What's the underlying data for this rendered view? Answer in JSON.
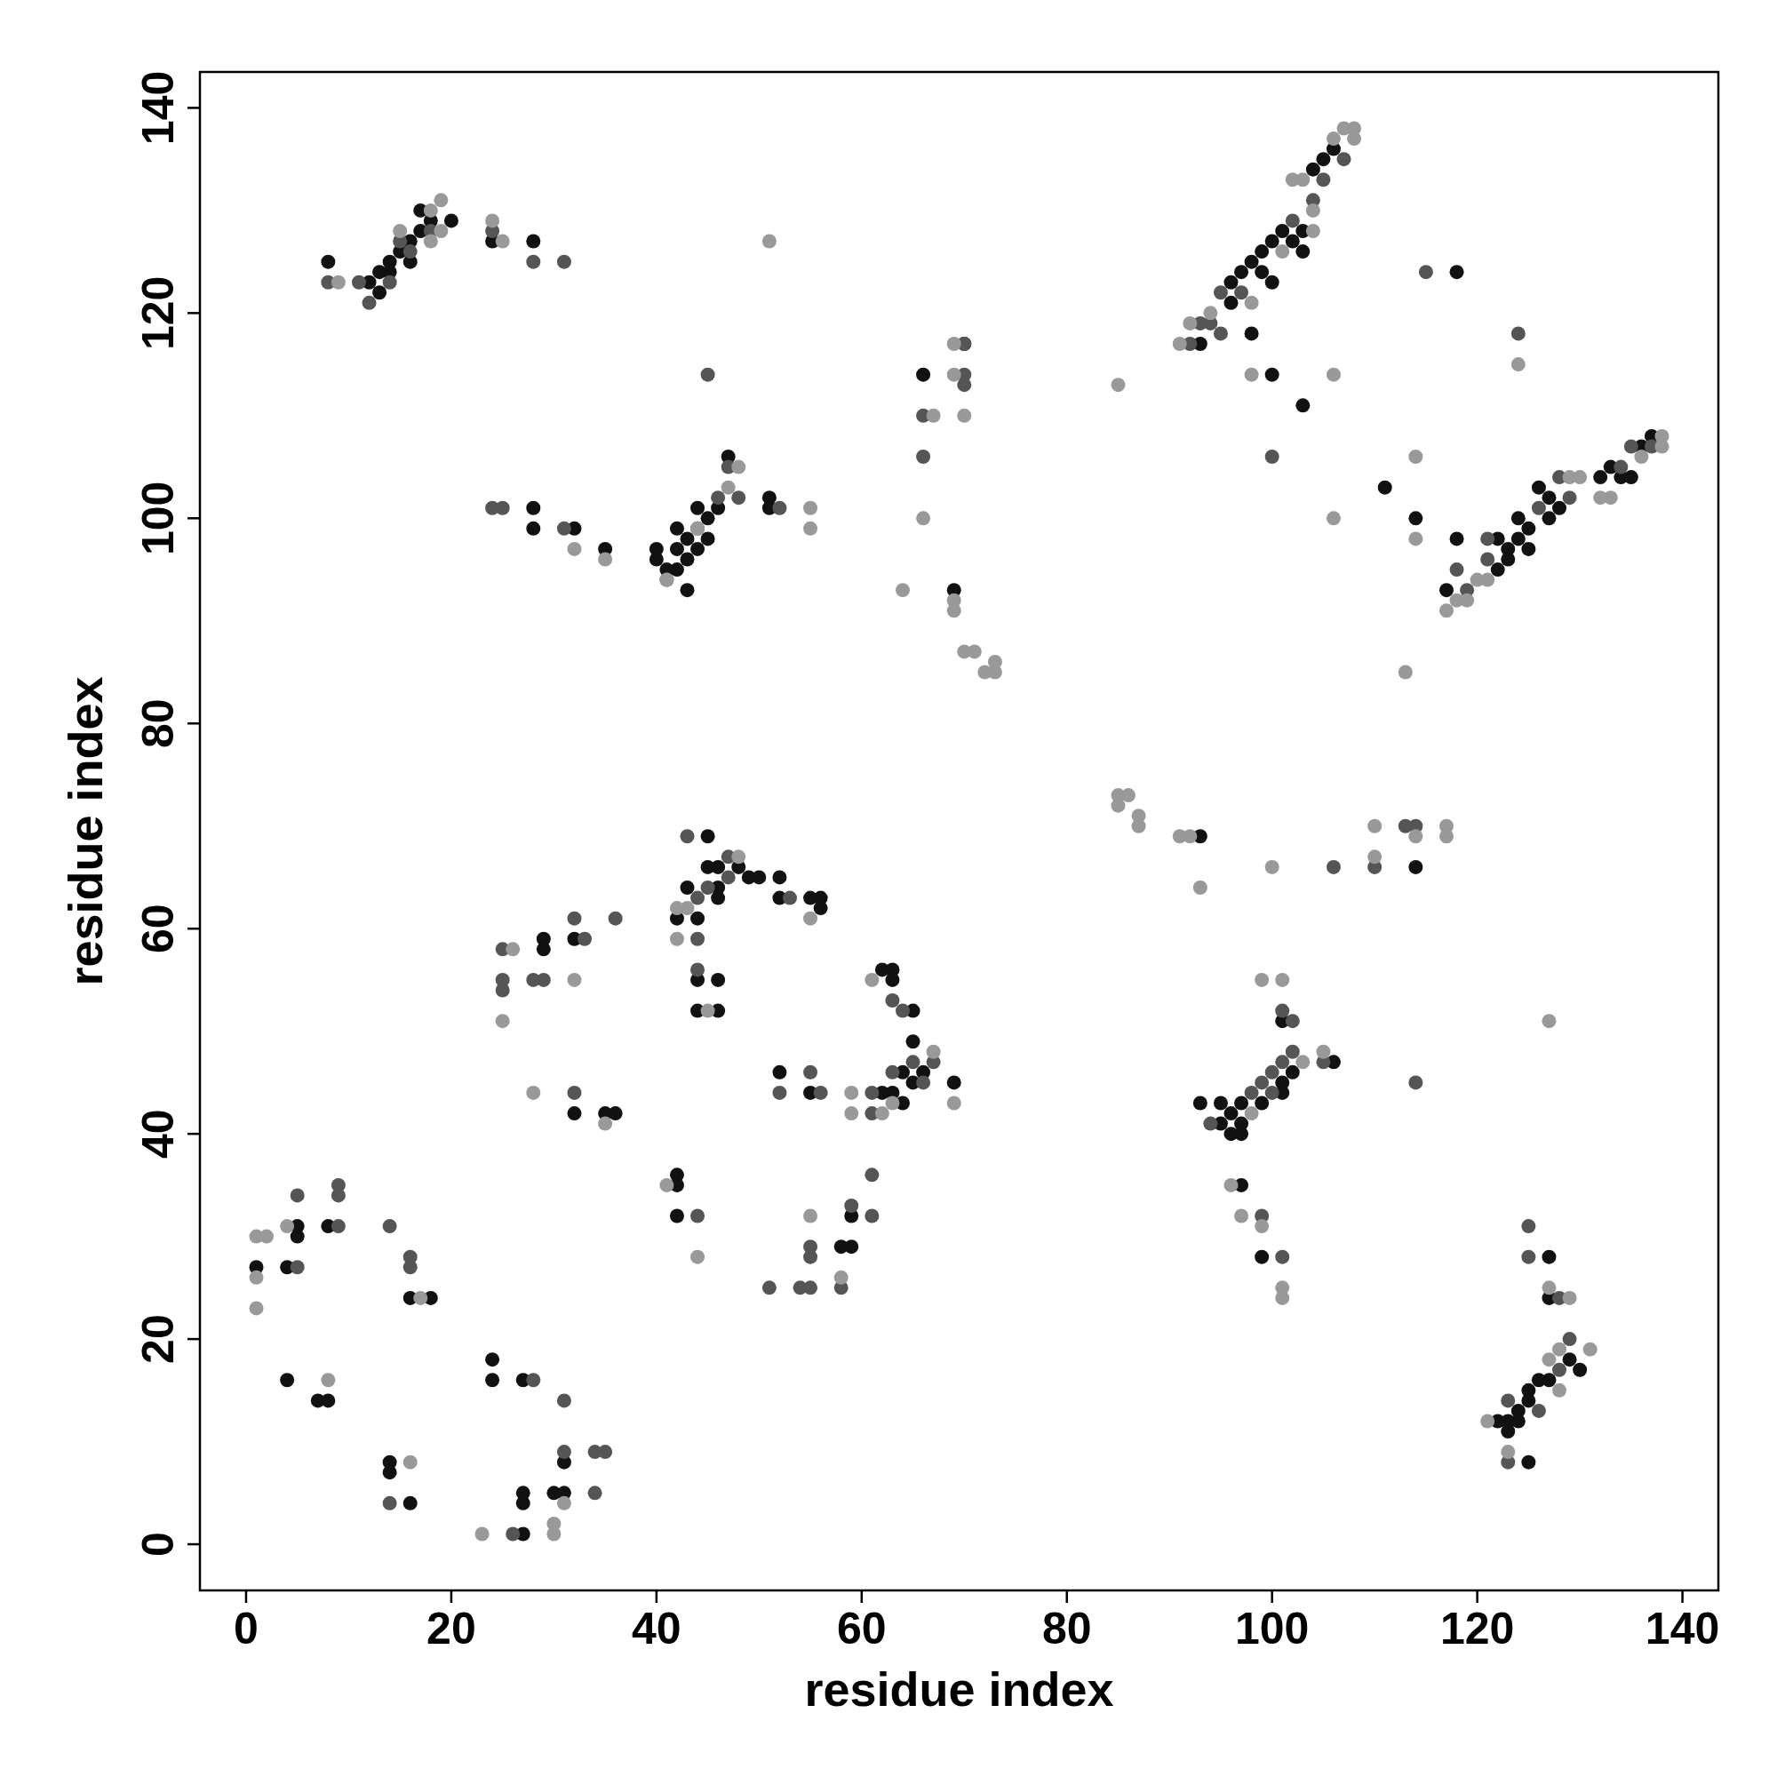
{
  "chart_data": {
    "type": "scatter",
    "xlabel": "residue index",
    "ylabel": "residue index",
    "xlim": [
      -4.5,
      143.5
    ],
    "ylim": [
      -4.5,
      143.5
    ],
    "xticks": [
      0,
      20,
      40,
      60,
      80,
      100,
      120,
      140
    ],
    "yticks": [
      0,
      20,
      40,
      60,
      80,
      100,
      120,
      140
    ],
    "grid": false,
    "marker": "circle",
    "series": [
      {
        "color": "#111111",
        "x": [
          8,
          12,
          13,
          14,
          15,
          16,
          17,
          17,
          18,
          13,
          14,
          16,
          20,
          24,
          28,
          28,
          28,
          32,
          35,
          40,
          40,
          41,
          42,
          42,
          43,
          43,
          43,
          44,
          45,
          45,
          46,
          47,
          51,
          51,
          42,
          44,
          66,
          69,
          70,
          93,
          96,
          96,
          97,
          98,
          98,
          99,
          99,
          100,
          100,
          101,
          102,
          103,
          103,
          104,
          105,
          106,
          100,
          103,
          111,
          114,
          117,
          118,
          118,
          122,
          122,
          123,
          123,
          124,
          124,
          125,
          125,
          126,
          127,
          127,
          128,
          132,
          133,
          134,
          135,
          136,
          137,
          93,
          114,
          93,
          95,
          95,
          96,
          96,
          97,
          97,
          97,
          99,
          101,
          101,
          102,
          106,
          101,
          97,
          99,
          122,
          123,
          123,
          124,
          124,
          125,
          125,
          125,
          126,
          127,
          127,
          127,
          129,
          130,
          29,
          29,
          32,
          32,
          35,
          36,
          42,
          43,
          44,
          44,
          44,
          45,
          45,
          46,
          46,
          46,
          46,
          46,
          48,
          49,
          50,
          52,
          52,
          55,
          56,
          56,
          42,
          42,
          42,
          52,
          55,
          58,
          59,
          59,
          62,
          63,
          63,
          65,
          62,
          63,
          64,
          64,
          65,
          65,
          66,
          69,
          1,
          5,
          5,
          4,
          8,
          4,
          7,
          8,
          16,
          18,
          14,
          14,
          16,
          24,
          24,
          27,
          27,
          27,
          27,
          30,
          31,
          31
        ],
        "values": [
          125,
          123,
          124,
          125,
          126,
          127,
          128,
          130,
          129,
          122,
          124,
          125,
          129,
          127,
          127,
          101,
          99,
          99,
          97,
          97,
          96,
          95,
          97,
          99,
          98,
          96,
          93,
          101,
          100,
          98,
          101,
          106,
          102,
          101,
          95,
          97,
          114,
          93,
          117,
          117,
          121,
          123,
          124,
          125,
          118,
          126,
          124,
          127,
          123,
          128,
          127,
          128,
          126,
          134,
          135,
          136,
          114,
          111,
          103,
          100,
          93,
          98,
          124,
          95,
          98,
          97,
          96,
          98,
          100,
          99,
          97,
          103,
          102,
          100,
          101,
          104,
          105,
          104,
          104,
          107,
          108,
          69,
          66,
          43,
          43,
          41,
          42,
          40,
          43,
          41,
          40,
          43,
          45,
          44,
          46,
          47,
          51,
          35,
          28,
          12,
          12,
          11,
          13,
          12,
          15,
          14,
          8,
          16,
          16,
          28,
          24,
          18,
          17,
          59,
          58,
          59,
          42,
          42,
          42,
          61,
          64,
          61,
          55,
          52,
          69,
          66,
          66,
          64,
          63,
          55,
          52,
          66,
          65,
          65,
          65,
          63,
          63,
          63,
          62,
          36,
          35,
          32,
          46,
          44,
          29,
          29,
          32,
          56,
          56,
          55,
          52,
          44,
          44,
          46,
          43,
          49,
          45,
          46,
          45,
          27,
          31,
          30,
          27,
          31,
          16,
          14,
          14,
          24,
          24,
          8,
          7,
          4,
          18,
          16,
          16,
          1,
          5,
          4,
          5,
          5,
          8
        ]
      },
      {
        "color": "#555555",
        "x": [
          8,
          11,
          14,
          15,
          16,
          18,
          12,
          24,
          28,
          31,
          45,
          24,
          25,
          31,
          41,
          44,
          46,
          47,
          48,
          52,
          66,
          66,
          70,
          70,
          70,
          92,
          93,
          94,
          95,
          95,
          97,
          102,
          104,
          105,
          107,
          100,
          115,
          118,
          119,
          121,
          121,
          126,
          128,
          129,
          134,
          135,
          137,
          124,
          106,
          110,
          113,
          114,
          94,
          98,
          99,
          100,
          100,
          101,
          102,
          105,
          101,
          102,
          99,
          101,
          114,
          123,
          123,
          125,
          125,
          126,
          128,
          128,
          129,
          25,
          25,
          25,
          28,
          29,
          32,
          33,
          36,
          32,
          43,
          44,
          44,
          44,
          45,
          47,
          47,
          53,
          44,
          52,
          55,
          56,
          51,
          54,
          55,
          55,
          55,
          58,
          59,
          61,
          61,
          63,
          64,
          63,
          65,
          66,
          67,
          61,
          61,
          5,
          5,
          9,
          9,
          9,
          14,
          16,
          16,
          28,
          14,
          26,
          31,
          31,
          34,
          35,
          34
        ],
        "values": [
          123,
          123,
          123,
          127,
          126,
          128,
          121,
          128,
          125,
          125,
          114,
          101,
          101,
          99,
          94,
          99,
          102,
          105,
          102,
          101,
          110,
          106,
          117,
          114,
          113,
          117,
          119,
          119,
          122,
          118,
          122,
          129,
          131,
          133,
          135,
          106,
          124,
          95,
          93,
          98,
          96,
          101,
          104,
          102,
          105,
          107,
          107,
          118,
          66,
          66,
          70,
          70,
          41,
          44,
          45,
          46,
          44,
          47,
          48,
          47,
          52,
          51,
          32,
          28,
          45,
          14,
          8,
          31,
          28,
          13,
          17,
          24,
          20,
          58,
          55,
          54,
          55,
          55,
          61,
          59,
          61,
          44,
          69,
          63,
          59,
          56,
          64,
          67,
          65,
          63,
          32,
          44,
          46,
          44,
          25,
          25,
          25,
          29,
          28,
          25,
          33,
          44,
          42,
          53,
          52,
          46,
          47,
          45,
          47,
          36,
          32,
          34,
          27,
          35,
          34,
          31,
          31,
          28,
          27,
          16,
          4,
          1,
          14,
          9,
          9,
          9,
          5
        ]
      },
      {
        "color": "#999999",
        "x": [
          9,
          15,
          18,
          19,
          19,
          18,
          24,
          25,
          51,
          32,
          35,
          41,
          44,
          47,
          48,
          55,
          55,
          66,
          67,
          69,
          69,
          70,
          64,
          69,
          69,
          70,
          71,
          72,
          73,
          73,
          85,
          91,
          92,
          94,
          98,
          101,
          103,
          106,
          107,
          108,
          108,
          102,
          104,
          104,
          98,
          106,
          106,
          113,
          114,
          114,
          124,
          117,
          118,
          119,
          120,
          121,
          129,
          130,
          132,
          133,
          136,
          138,
          138,
          85,
          85,
          86,
          87,
          87,
          91,
          92,
          93,
          100,
          110,
          110,
          114,
          117,
          117,
          98,
          103,
          105,
          99,
          101,
          96,
          97,
          99,
          101,
          101,
          127,
          121,
          123,
          127,
          127,
          128,
          128,
          129,
          131,
          26,
          25,
          28,
          32,
          35,
          42,
          42,
          43,
          45,
          48,
          55,
          41,
          44,
          55,
          58,
          59,
          59,
          61,
          62,
          63,
          67,
          69,
          1,
          2,
          1,
          1,
          4,
          8,
          17,
          16,
          23,
          31,
          30,
          30
        ],
        "values": [
          123,
          128,
          127,
          131,
          128,
          130,
          129,
          127,
          127,
          97,
          96,
          94,
          99,
          103,
          105,
          101,
          99,
          100,
          110,
          117,
          114,
          110,
          93,
          92,
          91,
          87,
          87,
          85,
          86,
          85,
          113,
          117,
          119,
          120,
          121,
          126,
          133,
          137,
          138,
          137,
          138,
          133,
          130,
          128,
          114,
          114,
          100,
          85,
          106,
          98,
          115,
          91,
          92,
          92,
          94,
          94,
          104,
          104,
          102,
          102,
          106,
          108,
          107,
          73,
          72,
          73,
          71,
          70,
          69,
          69,
          64,
          66,
          70,
          67,
          69,
          70,
          69,
          42,
          47,
          48,
          55,
          55,
          35,
          32,
          31,
          25,
          24,
          51,
          12,
          9,
          18,
          25,
          19,
          15,
          24,
          19,
          58,
          51,
          44,
          55,
          41,
          62,
          59,
          62,
          52,
          67,
          61,
          35,
          28,
          32,
          26,
          44,
          42,
          55,
          42,
          43,
          48,
          43,
          30,
          30,
          26,
          23,
          31,
          16,
          24,
          8,
          1,
          4,
          2,
          1
        ]
      }
    ]
  }
}
